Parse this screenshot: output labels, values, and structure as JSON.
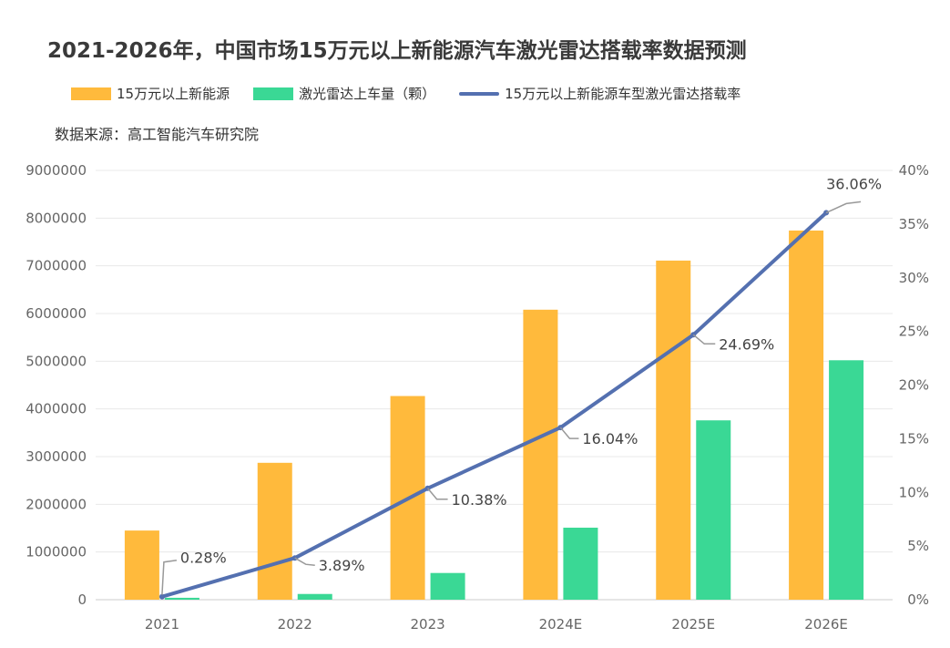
{
  "title": "2021-2026年，中国市场15万元以上新能源汽车激光雷达搭载率数据预测",
  "source": "数据来源：高工智能汽车研究院",
  "legend": {
    "series0": "15万元以上新能源",
    "series1": "激光雷达上车量（颗）",
    "series2": "15万元以上新能源车型激光雷达搭载率"
  },
  "colors": {
    "series0": "#FFBA3C",
    "series1": "#3AD895",
    "series2": "#5470B0",
    "grid": "#E8E8E8",
    "axis": "#CCCCCC",
    "leader": "#999999"
  },
  "chart_data": {
    "type": "bar+line",
    "title": "2021-2026年，中国市场15万元以上新能源汽车激光雷达搭载率数据预测",
    "categories": [
      "2021",
      "2022",
      "2023",
      "2024E",
      "2025E",
      "2026E"
    ],
    "series": [
      {
        "name": "15万元以上新能源",
        "type": "bar",
        "axis": "left",
        "values": [
          1450000,
          2870000,
          4270000,
          6080000,
          7110000,
          7740000
        ]
      },
      {
        "name": "激光雷达上车量（颗）",
        "type": "bar",
        "axis": "left",
        "values": [
          40000,
          120000,
          560000,
          1510000,
          3760000,
          5020000
        ]
      },
      {
        "name": "15万元以上新能源车型激光雷达搭载率",
        "type": "line",
        "axis": "right",
        "values": [
          0.28,
          3.89,
          10.38,
          16.04,
          24.69,
          36.06
        ],
        "labels": [
          "0.28%",
          "3.89%",
          "10.38%",
          "16.04%",
          "24.69%",
          "36.06%"
        ]
      }
    ],
    "left_axis": {
      "min": 0,
      "max": 9000000,
      "ticks": [
        "0",
        "1000000",
        "2000000",
        "3000000",
        "4000000",
        "5000000",
        "6000000",
        "7000000",
        "8000000",
        "9000000"
      ]
    },
    "right_axis": {
      "min": 0,
      "max": 40,
      "ticks": [
        "0%",
        "5%",
        "10%",
        "15%",
        "20%",
        "25%",
        "30%",
        "35%",
        "40%"
      ]
    },
    "grid": true,
    "legend_position": "top-left"
  }
}
